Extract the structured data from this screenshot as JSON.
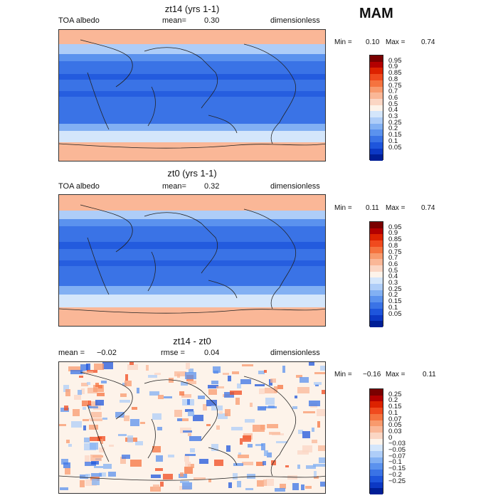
{
  "season": "MAM",
  "panels": [
    {
      "title": "zt14 (yrs 1-1)",
      "left_label": "TOA albedo",
      "mean_label": "mean=",
      "mean_value": "0.30",
      "units": "dimensionless",
      "min_label": "Min =",
      "min_value": "0.10",
      "max_label": "Max =",
      "max_value": "0.74"
    },
    {
      "title": "zt0 (yrs 1-1)",
      "left_label": "TOA albedo",
      "mean_label": "mean=",
      "mean_value": "0.32",
      "units": "dimensionless",
      "min_label": "Min =",
      "min_value": "0.11",
      "max_label": "Max =",
      "max_value": "0.74"
    },
    {
      "title": "zt14 - zt0",
      "left_label": "mean =",
      "mean_value": "−0.02",
      "mean_label": "rmse =",
      "rmse_value": "0.04",
      "units": "dimensionless",
      "min_label": "Min =",
      "min_value": "−0.16",
      "max_label": "Max =",
      "max_value": "0.11"
    }
  ],
  "colorbar_abs": {
    "labels": [
      "0.95",
      "0.9",
      "0.85",
      "0.8",
      "0.75",
      "0.7",
      "0.6",
      "0.5",
      "0.4",
      "0.3",
      "0.25",
      "0.2",
      "0.15",
      "0.1",
      "0.05"
    ],
    "colors": [
      "#7a0000",
      "#b30000",
      "#dd2200",
      "#f04a1e",
      "#f5733f",
      "#f89a6d",
      "#fab797",
      "#fbd6c4",
      "#fdf3ea",
      "#d4e6fb",
      "#aecdf8",
      "#82b0f3",
      "#5b92ee",
      "#3a73e6",
      "#1e55dc",
      "#0c38c4",
      "#001e96"
    ]
  },
  "colorbar_diff": {
    "labels": [
      "0.25",
      "0.2",
      "0.15",
      "0.1",
      "0.07",
      "0.05",
      "0.03",
      "0",
      "−0.03",
      "−0.05",
      "−0.07",
      "−0.1",
      "−0.15",
      "−0.2",
      "−0.25"
    ],
    "colors": [
      "#7a0000",
      "#b30000",
      "#dd2200",
      "#f04a1e",
      "#f5733f",
      "#f89a6d",
      "#fab797",
      "#fbd6c4",
      "#fdf3ea",
      "#d4e6fb",
      "#aecdf8",
      "#82b0f3",
      "#5b92ee",
      "#3a73e6",
      "#1e55dc",
      "#0c38c4",
      "#001e96"
    ]
  }
}
